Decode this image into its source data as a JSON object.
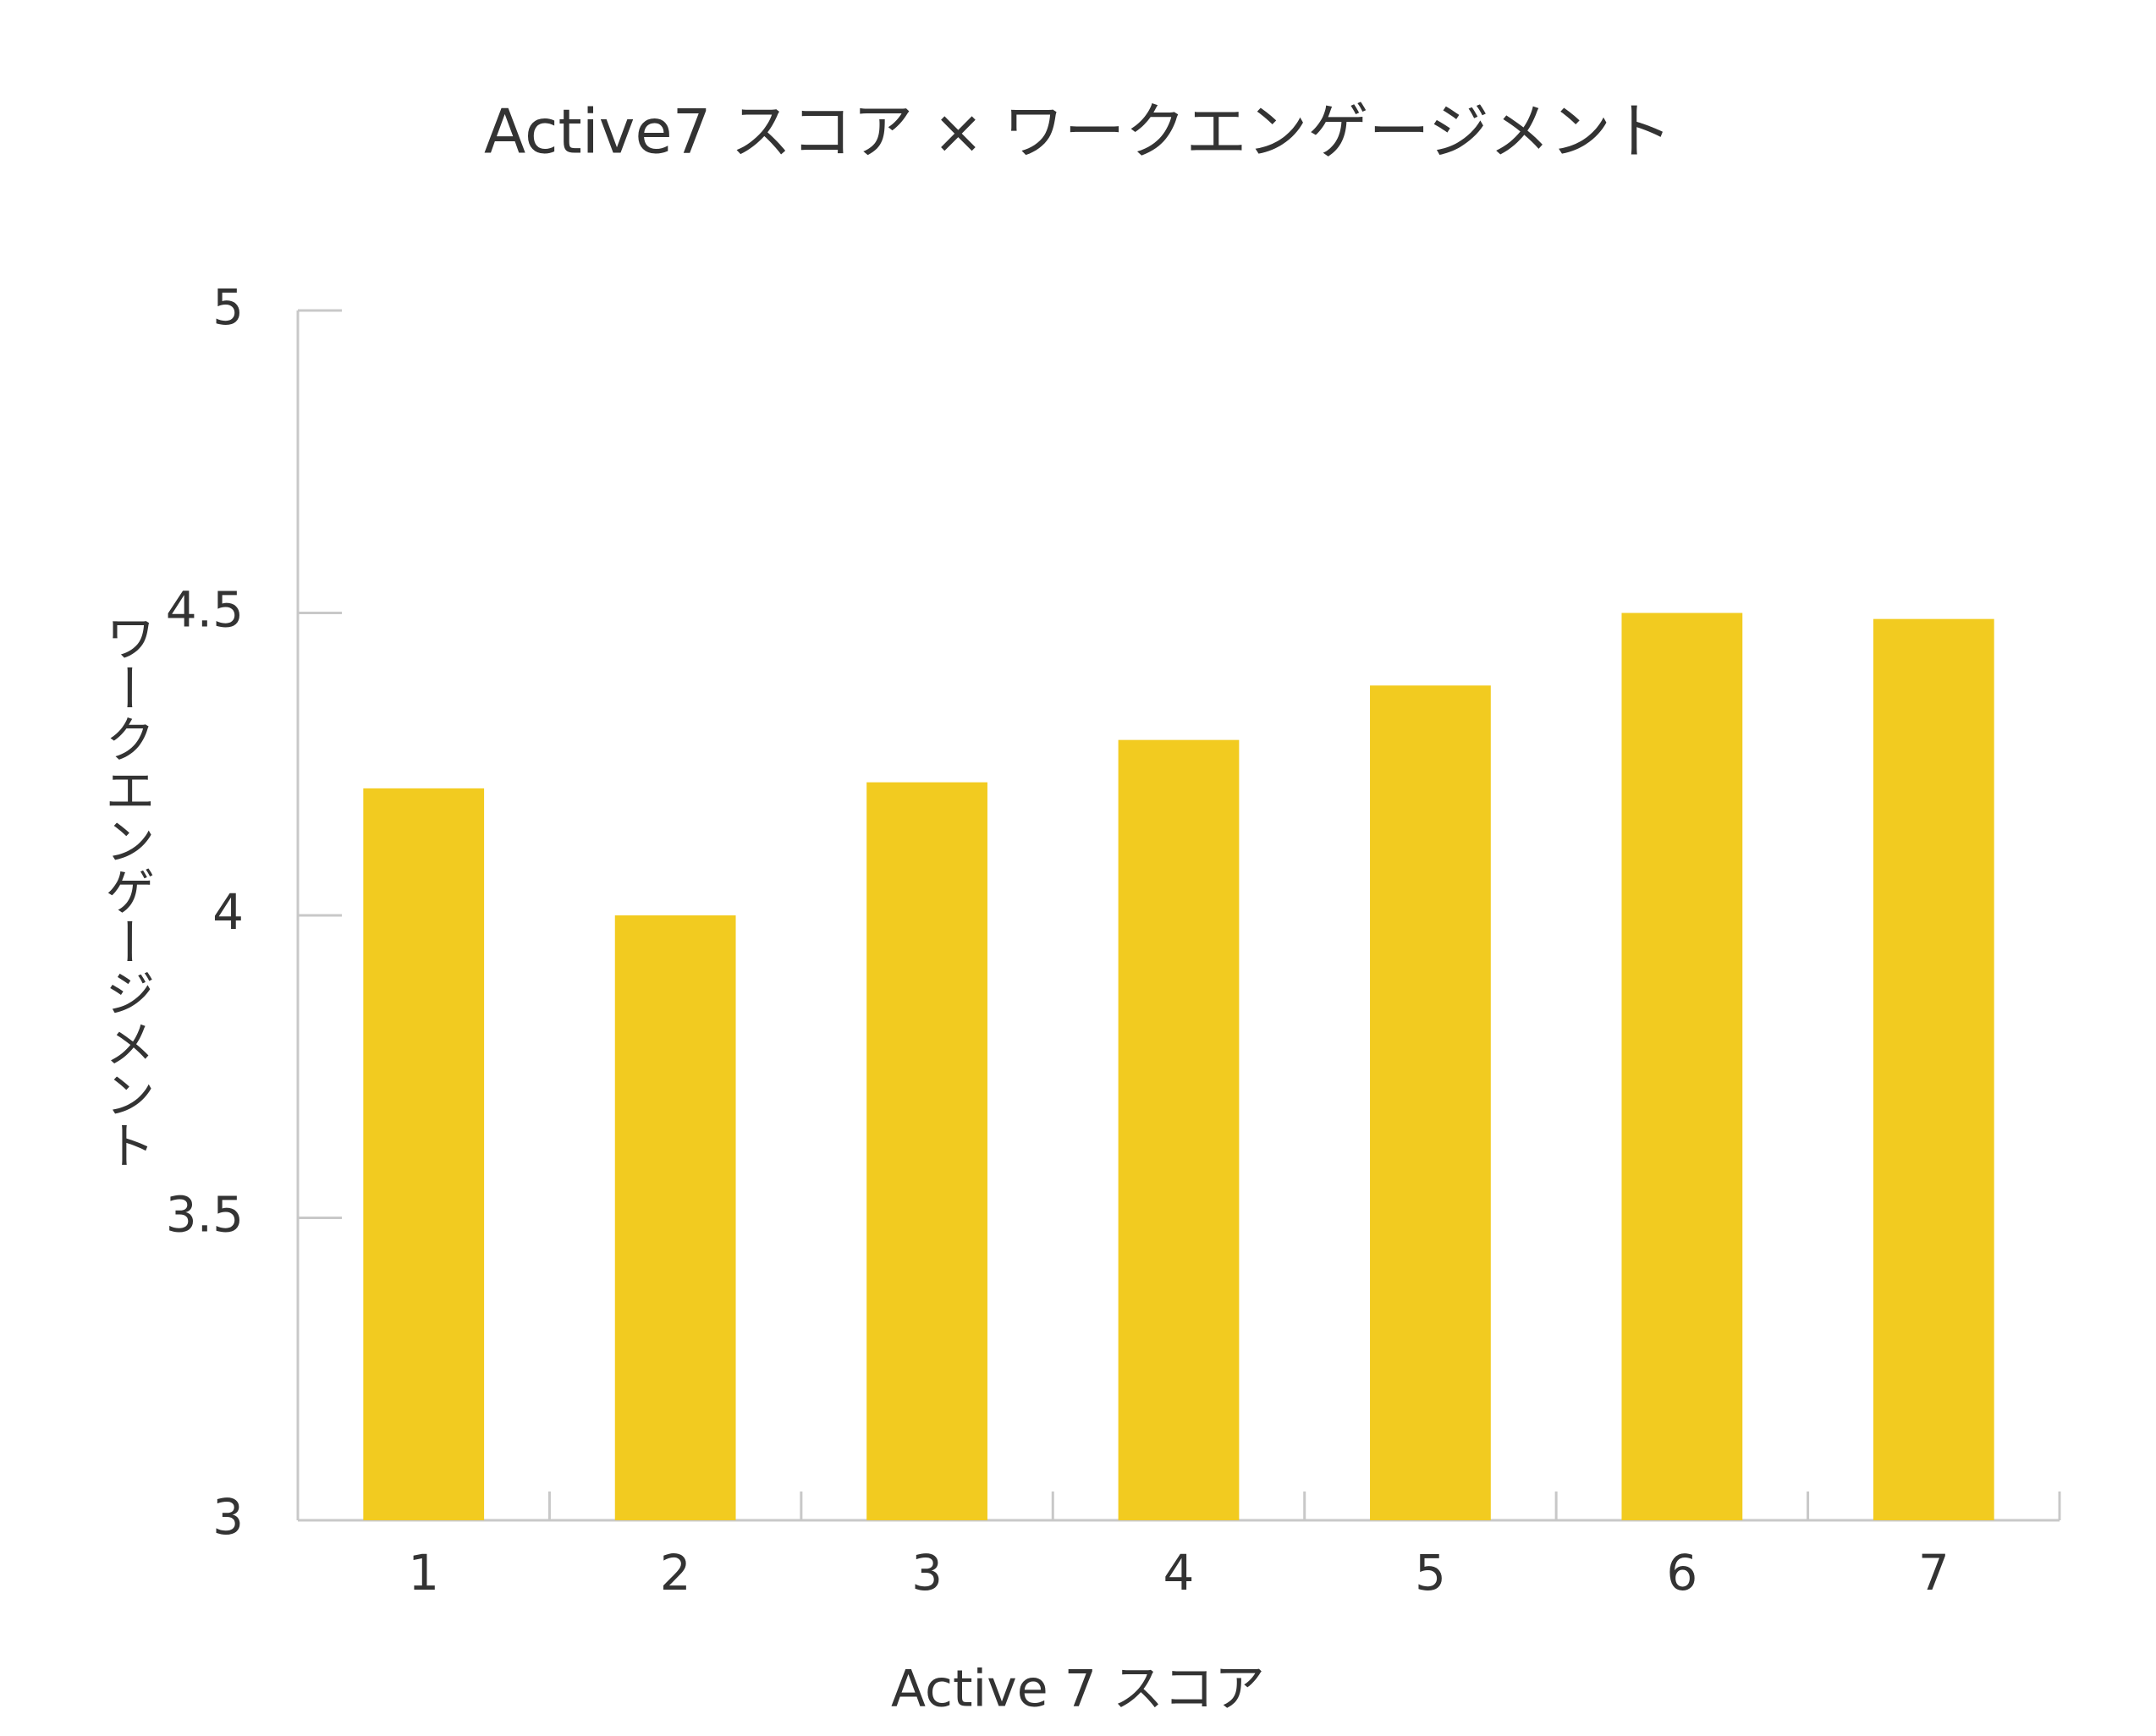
{
  "chart_data": {
    "type": "bar",
    "title": "Active7 スコア × ワークエンゲージメント",
    "x_label": "Active 7 スコア",
    "y_label": "ワークエンゲージメント",
    "categories": [
      "1",
      "2",
      "3",
      "4",
      "5",
      "6",
      "7"
    ],
    "values": [
      4.21,
      4.0,
      4.22,
      4.29,
      4.38,
      4.5,
      4.49
    ],
    "color": "#f2cb20",
    "ylim": [
      3,
      5
    ],
    "yticks": [
      3,
      3.5,
      4,
      4.5,
      5
    ],
    "grid": false
  }
}
